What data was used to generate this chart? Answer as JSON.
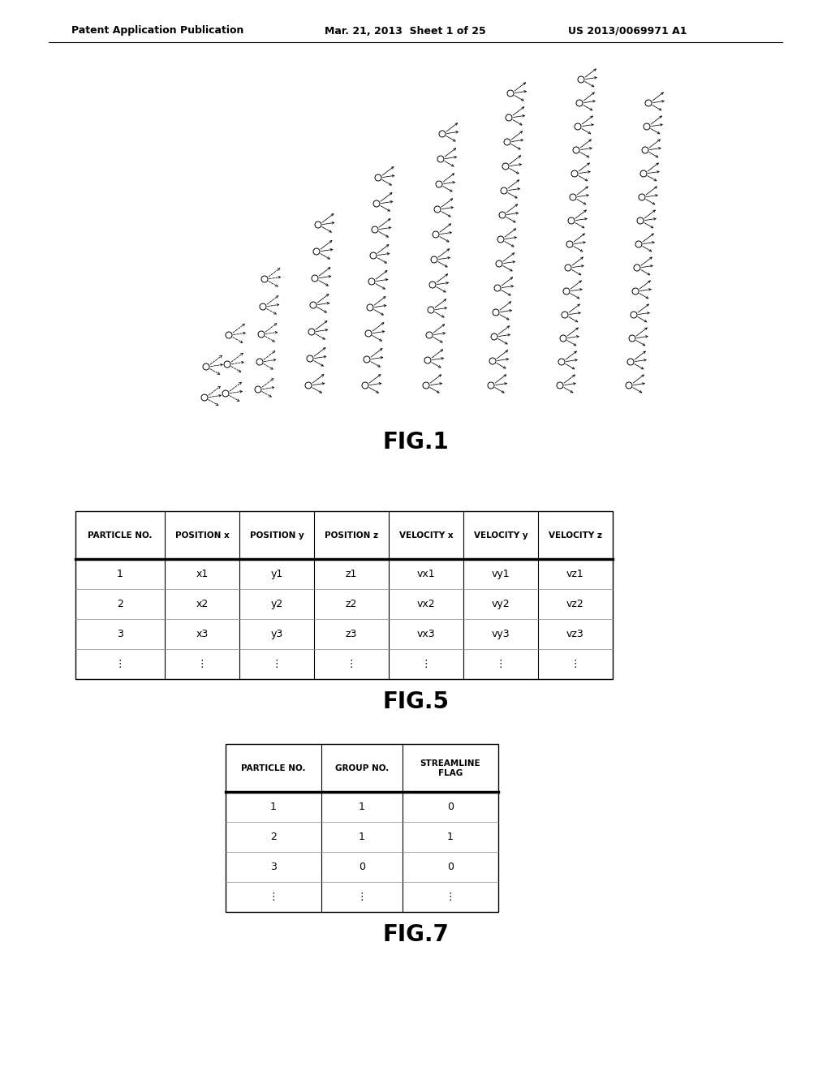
{
  "header_text_left": "Patent Application Publication",
  "header_text_mid": "Mar. 21, 2013  Sheet 1 of 25",
  "header_text_right": "US 2013/0069971 A1",
  "fig1_label": "FIG.1",
  "fig5_label": "FIG.5",
  "fig7_label": "FIG.7",
  "fig5_headers": [
    "PARTICLE NO.",
    "POSITION x",
    "POSITION y",
    "POSITION z",
    "VELOCITY x",
    "VELOCITY y",
    "VELOCITY z"
  ],
  "fig5_rows": [
    [
      "1",
      "x1",
      "y1",
      "z1",
      "vx1",
      "vy1",
      "vz1"
    ],
    [
      "2",
      "x2",
      "y2",
      "z2",
      "vx2",
      "vy2",
      "vz2"
    ],
    [
      "3",
      "x3",
      "y3",
      "z3",
      "vx3",
      "vy3",
      "vz3"
    ],
    [
      "⋮",
      "⋮",
      "⋮",
      "⋮",
      "⋮",
      "⋮",
      "⋮"
    ]
  ],
  "fig7_headers": [
    "PARTICLE NO.",
    "GROUP NO.",
    "STREAMLINE\nFLAG"
  ],
  "fig7_rows": [
    [
      "1",
      "1",
      "0"
    ],
    [
      "2",
      "1",
      "1"
    ],
    [
      "3",
      "0",
      "0"
    ],
    [
      "⋮",
      "⋮",
      "⋮"
    ]
  ],
  "background_color": "#ffffff",
  "text_color": "#000000"
}
